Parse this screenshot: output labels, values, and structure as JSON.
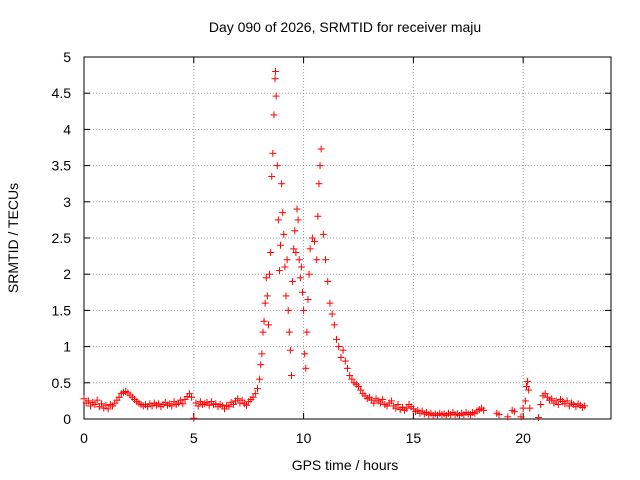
{
  "chart_data": {
    "type": "scatter",
    "title": "Day 090 of 2026, SRMTID for receiver maju",
    "xlabel": "GPS time / hours",
    "ylabel": "SRMTID / TECUs",
    "xlim": [
      0,
      24
    ],
    "ylim": [
      0,
      5
    ],
    "grid": true,
    "marker": "plus",
    "xticks": [
      0,
      5,
      10,
      15,
      20
    ],
    "xtick_labels": [
      "0",
      "5",
      "10",
      "15",
      "20"
    ],
    "yticks": [
      0,
      0.5,
      1,
      1.5,
      2,
      2.5,
      3,
      3.5,
      4,
      4.5,
      5
    ],
    "ytick_labels": [
      "0",
      "0.5",
      "1",
      "1.5",
      "2",
      "2.5",
      "3",
      "3.5",
      "4",
      "4.5",
      "5"
    ],
    "series": [
      {
        "name": "SRMTID",
        "color": "#ff0000",
        "points": [
          [
            0.0,
            0.28
          ],
          [
            0.1,
            0.22
          ],
          [
            0.2,
            0.25
          ],
          [
            0.3,
            0.18
          ],
          [
            0.4,
            0.23
          ],
          [
            0.5,
            0.2
          ],
          [
            0.6,
            0.26
          ],
          [
            0.7,
            0.17
          ],
          [
            0.8,
            0.21
          ],
          [
            0.9,
            0.15
          ],
          [
            1.0,
            0.19
          ],
          [
            1.1,
            0.14
          ],
          [
            1.2,
            0.2
          ],
          [
            1.3,
            0.18
          ],
          [
            1.4,
            0.22
          ],
          [
            1.5,
            0.26
          ],
          [
            1.6,
            0.3
          ],
          [
            1.7,
            0.35
          ],
          [
            1.8,
            0.37
          ],
          [
            1.9,
            0.38
          ],
          [
            2.0,
            0.36
          ],
          [
            2.1,
            0.33
          ],
          [
            2.2,
            0.3
          ],
          [
            2.3,
            0.27
          ],
          [
            2.4,
            0.24
          ],
          [
            2.5,
            0.22
          ],
          [
            2.6,
            0.2
          ],
          [
            2.7,
            0.18
          ],
          [
            2.8,
            0.2
          ],
          [
            2.9,
            0.17
          ],
          [
            3.0,
            0.21
          ],
          [
            3.1,
            0.18
          ],
          [
            3.2,
            0.22
          ],
          [
            3.3,
            0.19
          ],
          [
            3.4,
            0.21
          ],
          [
            3.5,
            0.17
          ],
          [
            3.6,
            0.2
          ],
          [
            3.7,
            0.23
          ],
          [
            3.8,
            0.19
          ],
          [
            3.9,
            0.21
          ],
          [
            4.0,
            0.18
          ],
          [
            4.1,
            0.24
          ],
          [
            4.2,
            0.2
          ],
          [
            4.3,
            0.22
          ],
          [
            4.4,
            0.26
          ],
          [
            4.5,
            0.21
          ],
          [
            4.6,
            0.27
          ],
          [
            4.7,
            0.31
          ],
          [
            4.8,
            0.35
          ],
          [
            4.9,
            0.3
          ],
          [
            5.0,
            0.01
          ],
          [
            5.1,
            0.22
          ],
          [
            5.2,
            0.18
          ],
          [
            5.3,
            0.24
          ],
          [
            5.4,
            0.2
          ],
          [
            5.5,
            0.21
          ],
          [
            5.6,
            0.23
          ],
          [
            5.7,
            0.19
          ],
          [
            5.8,
            0.24
          ],
          [
            5.9,
            0.2
          ],
          [
            6.0,
            0.21
          ],
          [
            6.1,
            0.17
          ],
          [
            6.2,
            0.2
          ],
          [
            6.3,
            0.18
          ],
          [
            6.4,
            0.14
          ],
          [
            6.5,
            0.19
          ],
          [
            6.6,
            0.17
          ],
          [
            6.7,
            0.23
          ],
          [
            6.8,
            0.2
          ],
          [
            6.9,
            0.25
          ],
          [
            7.0,
            0.28
          ],
          [
            7.1,
            0.22
          ],
          [
            7.2,
            0.26
          ],
          [
            7.3,
            0.21
          ],
          [
            7.4,
            0.19
          ],
          [
            7.5,
            0.24
          ],
          [
            7.6,
            0.27
          ],
          [
            7.7,
            0.3
          ],
          [
            7.8,
            0.35
          ],
          [
            7.9,
            0.42
          ],
          [
            8.0,
            0.55
          ],
          [
            8.05,
            0.75
          ],
          [
            8.1,
            0.9
          ],
          [
            8.15,
            1.2
          ],
          [
            8.2,
            1.35
          ],
          [
            8.25,
            1.6
          ],
          [
            8.3,
            1.95
          ],
          [
            8.35,
            1.7
          ],
          [
            8.4,
            1.3
          ],
          [
            8.45,
            2.0
          ],
          [
            8.5,
            2.3
          ],
          [
            8.55,
            3.35
          ],
          [
            8.6,
            3.67
          ],
          [
            8.65,
            4.2
          ],
          [
            8.7,
            4.7
          ],
          [
            8.72,
            4.8
          ],
          [
            8.75,
            4.46
          ],
          [
            8.8,
            3.5
          ],
          [
            8.85,
            2.75
          ],
          [
            8.9,
            2.05
          ],
          [
            8.95,
            2.4
          ],
          [
            9.0,
            3.25
          ],
          [
            9.05,
            2.85
          ],
          [
            9.1,
            2.55
          ],
          [
            9.15,
            2.1
          ],
          [
            9.2,
            1.7
          ],
          [
            9.25,
            2.2
          ],
          [
            9.3,
            1.5
          ],
          [
            9.35,
            1.2
          ],
          [
            9.4,
            0.95
          ],
          [
            9.45,
            0.6
          ],
          [
            9.5,
            1.9
          ],
          [
            9.55,
            2.35
          ],
          [
            9.6,
            2.6
          ],
          [
            9.65,
            2.3
          ],
          [
            9.7,
            2.9
          ],
          [
            9.75,
            2.75
          ],
          [
            9.8,
            2.2
          ],
          [
            9.85,
            1.95
          ],
          [
            9.9,
            2.1
          ],
          [
            9.95,
            1.75
          ],
          [
            10.0,
            1.5
          ],
          [
            10.05,
            0.9
          ],
          [
            10.1,
            0.7
          ],
          [
            10.15,
            1.2
          ],
          [
            10.2,
            1.65
          ],
          [
            10.25,
            2.0
          ],
          [
            10.3,
            2.35
          ],
          [
            10.4,
            2.5
          ],
          [
            10.5,
            2.45
          ],
          [
            10.6,
            2.2
          ],
          [
            10.65,
            2.8
          ],
          [
            10.7,
            3.25
          ],
          [
            10.75,
            3.5
          ],
          [
            10.8,
            3.73
          ],
          [
            10.9,
            2.55
          ],
          [
            11.0,
            2.2
          ],
          [
            11.1,
            1.9
          ],
          [
            11.2,
            1.6
          ],
          [
            11.3,
            1.45
          ],
          [
            11.4,
            1.3
          ],
          [
            11.5,
            1.1
          ],
          [
            11.6,
            1.0
          ],
          [
            11.7,
            0.85
          ],
          [
            11.8,
            0.95
          ],
          [
            11.9,
            0.8
          ],
          [
            12.0,
            0.7
          ],
          [
            12.1,
            0.6
          ],
          [
            12.2,
            0.55
          ],
          [
            12.3,
            0.5
          ],
          [
            12.4,
            0.48
          ],
          [
            12.5,
            0.45
          ],
          [
            12.6,
            0.4
          ],
          [
            12.7,
            0.35
          ],
          [
            12.8,
            0.32
          ],
          [
            12.9,
            0.28
          ],
          [
            13.0,
            0.3
          ],
          [
            13.1,
            0.26
          ],
          [
            13.2,
            0.22
          ],
          [
            13.3,
            0.28
          ],
          [
            13.4,
            0.25
          ],
          [
            13.5,
            0.22
          ],
          [
            13.6,
            0.27
          ],
          [
            13.7,
            0.2
          ],
          [
            13.8,
            0.18
          ],
          [
            13.9,
            0.22
          ],
          [
            14.0,
            0.25
          ],
          [
            14.1,
            0.18
          ],
          [
            14.2,
            0.15
          ],
          [
            14.3,
            0.2
          ],
          [
            14.4,
            0.13
          ],
          [
            14.5,
            0.16
          ],
          [
            14.6,
            0.12
          ],
          [
            14.7,
            0.15
          ],
          [
            14.8,
            0.2
          ],
          [
            14.9,
            0.17
          ],
          [
            15.0,
            0.14
          ],
          [
            15.1,
            0.1
          ],
          [
            15.2,
            0.12
          ],
          [
            15.3,
            0.08
          ],
          [
            15.4,
            0.11
          ],
          [
            15.5,
            0.07
          ],
          [
            15.6,
            0.09
          ],
          [
            15.7,
            0.06
          ],
          [
            15.8,
            0.08
          ],
          [
            15.9,
            0.05
          ],
          [
            16.0,
            0.07
          ],
          [
            16.1,
            0.05
          ],
          [
            16.2,
            0.08
          ],
          [
            16.3,
            0.06
          ],
          [
            16.4,
            0.07
          ],
          [
            16.5,
            0.05
          ],
          [
            16.6,
            0.08
          ],
          [
            16.7,
            0.06
          ],
          [
            16.8,
            0.09
          ],
          [
            16.9,
            0.06
          ],
          [
            17.0,
            0.07
          ],
          [
            17.1,
            0.05
          ],
          [
            17.2,
            0.08
          ],
          [
            17.3,
            0.06
          ],
          [
            17.4,
            0.09
          ],
          [
            17.5,
            0.07
          ],
          [
            17.6,
            0.06
          ],
          [
            17.7,
            0.09
          ],
          [
            17.8,
            0.08
          ],
          [
            17.9,
            0.11
          ],
          [
            18.0,
            0.13
          ],
          [
            18.1,
            0.15
          ],
          [
            18.2,
            0.12
          ],
          [
            18.8,
            0.08
          ],
          [
            18.9,
            0.06
          ],
          [
            19.3,
            0.03
          ],
          [
            19.5,
            0.12
          ],
          [
            19.6,
            0.1
          ],
          [
            19.9,
            0.03
          ],
          [
            20.0,
            0.15
          ],
          [
            20.1,
            0.25
          ],
          [
            20.15,
            0.45
          ],
          [
            20.2,
            0.52
          ],
          [
            20.25,
            0.4
          ],
          [
            20.3,
            0.15
          ],
          [
            20.7,
            0.02
          ],
          [
            20.8,
            0.2
          ],
          [
            20.9,
            0.32
          ],
          [
            21.0,
            0.35
          ],
          [
            21.1,
            0.3
          ],
          [
            21.2,
            0.26
          ],
          [
            21.3,
            0.28
          ],
          [
            21.4,
            0.22
          ],
          [
            21.5,
            0.25
          ],
          [
            21.6,
            0.2
          ],
          [
            21.7,
            0.27
          ],
          [
            21.8,
            0.24
          ],
          [
            21.9,
            0.21
          ],
          [
            22.0,
            0.25
          ],
          [
            22.1,
            0.18
          ],
          [
            22.2,
            0.22
          ],
          [
            22.3,
            0.2
          ],
          [
            22.4,
            0.17
          ],
          [
            22.5,
            0.21
          ],
          [
            22.6,
            0.19
          ],
          [
            22.7,
            0.16
          ],
          [
            22.8,
            0.18
          ]
        ]
      }
    ]
  }
}
